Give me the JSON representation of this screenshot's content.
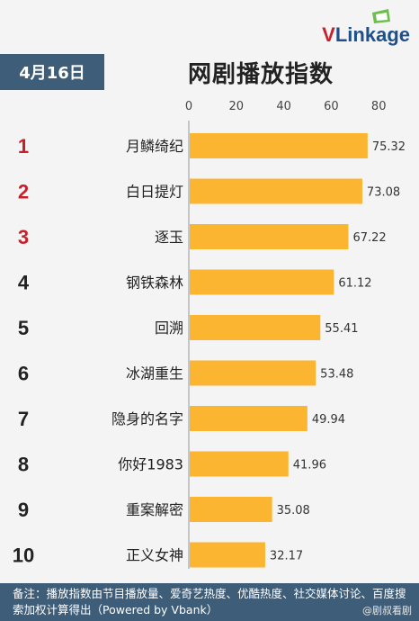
{
  "brand": {
    "v": "V",
    "rest": "Linkage"
  },
  "date_label": "4月16日",
  "title": "网剧播放指数",
  "footer_text": "备注：播放指数由节目播放量、爱奇艺热度、优酷热度、社交媒体讨论、百度搜索加权计算得出（Powered by Vbank）",
  "watermark": "@剧叔看剧",
  "colors": {
    "bar": "#fbb531",
    "header": "#3d5d78",
    "rank_top": "#c8202b",
    "rank_other": "#222222"
  },
  "chart_data": {
    "type": "bar",
    "orientation": "horizontal",
    "title": "网剧播放指数",
    "xlim": [
      0,
      80
    ],
    "xticks": [
      0,
      20,
      40,
      60,
      80
    ],
    "ranks": [
      "1",
      "2",
      "3",
      "4",
      "5",
      "6",
      "7",
      "8",
      "9",
      "10"
    ],
    "categories": [
      "月鳞绮纪",
      "白日提灯",
      "逐玉",
      "钢铁森林",
      "回溯",
      "冰湖重生",
      "隐身的名字",
      "你好1983",
      "重案解密",
      "正义女神"
    ],
    "values": [
      75.32,
      73.08,
      67.22,
      61.12,
      55.41,
      53.48,
      49.94,
      41.96,
      35.08,
      32.17
    ],
    "value_labels": [
      "75.32",
      "73.08",
      "67.22",
      "61.12",
      "55.41",
      "53.48",
      "49.94",
      "41.96",
      "35.08",
      "32.17"
    ],
    "grid": false
  }
}
